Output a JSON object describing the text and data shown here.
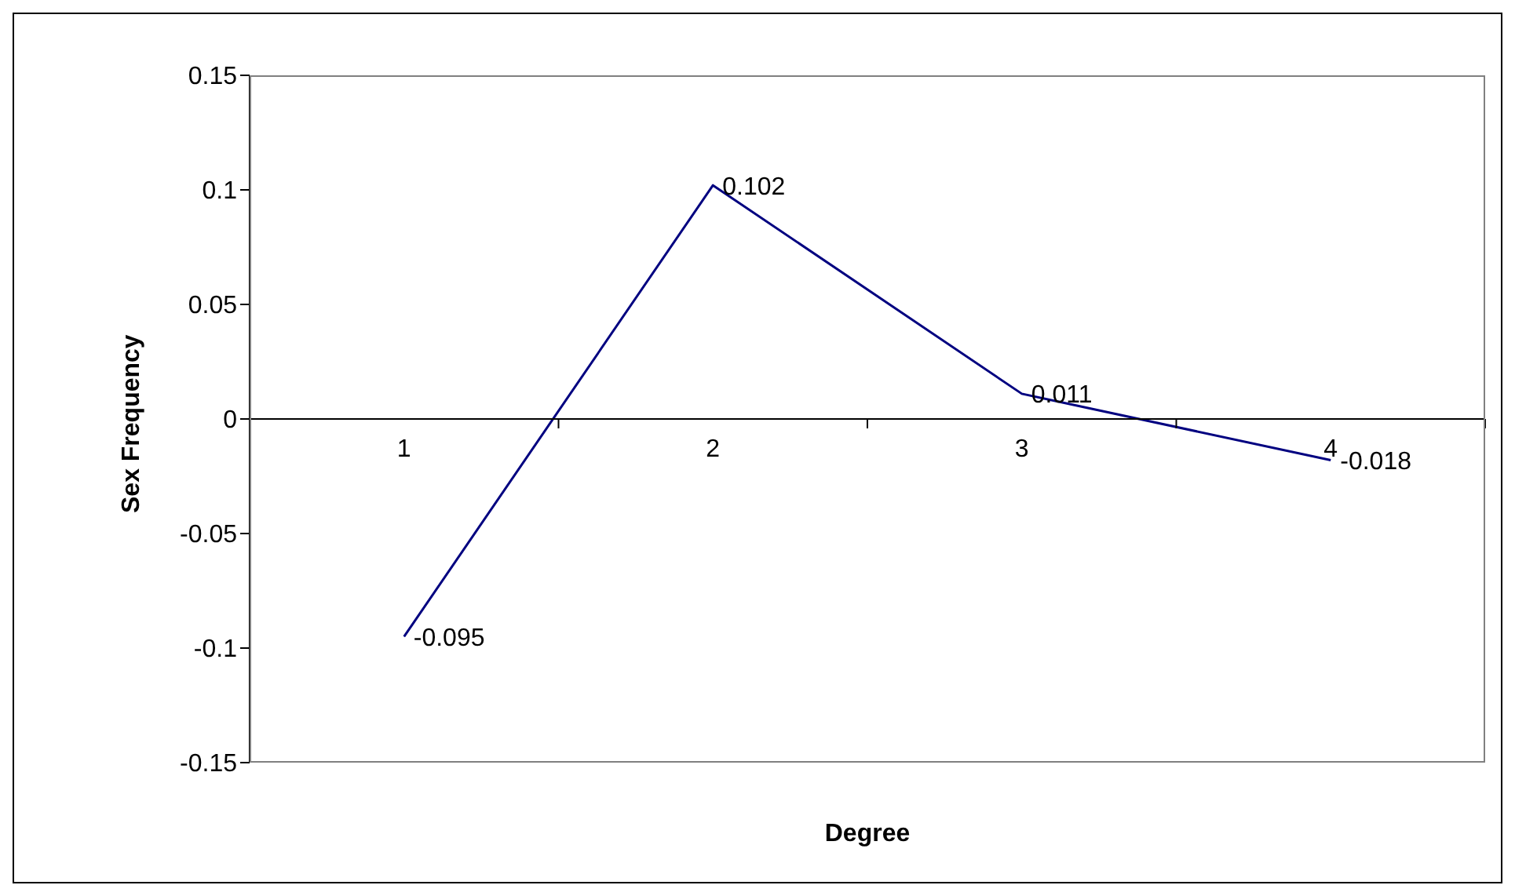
{
  "chart_data": {
    "type": "line",
    "xlabel": "Degree",
    "ylabel": "Sex Frequency",
    "categories": [
      "1",
      "2",
      "3",
      "4"
    ],
    "series": [
      {
        "color": "#000080",
        "values": [
          -0.095,
          0.102,
          0.011,
          -0.018
        ]
      }
    ],
    "ylim": [
      -0.15,
      0.15
    ],
    "yticks": [
      -0.15,
      -0.1,
      -0.05,
      0,
      0.05,
      0.1,
      0.15
    ],
    "data_labels": true,
    "grid": false,
    "legend": false,
    "marker": "none",
    "line_style": "solid"
  }
}
